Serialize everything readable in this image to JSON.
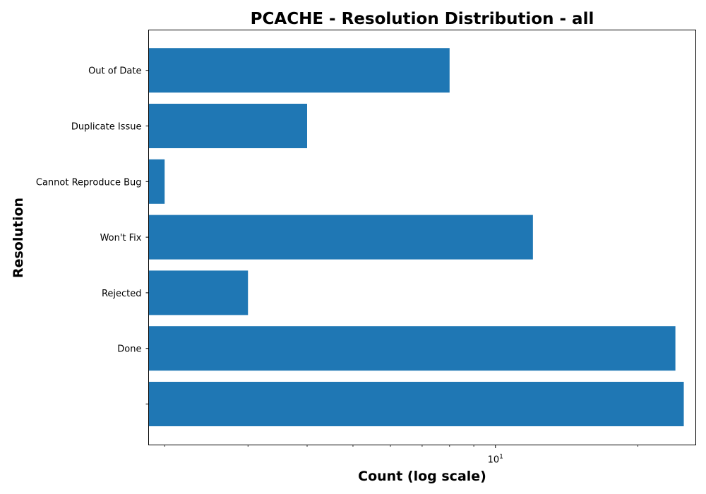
{
  "chart_data": {
    "type": "bar",
    "orientation": "horizontal",
    "title": "PCACHE - Resolution Distribution - all",
    "xlabel": "Count (log scale)",
    "ylabel": "Resolution",
    "xscale": "log",
    "xlim": [
      1.85,
      26.5
    ],
    "x_major_tick": {
      "base": "10",
      "exponent": "1",
      "value": 10
    },
    "x_minor_ticks": [
      2,
      3,
      4,
      5,
      6,
      7,
      8,
      9,
      20
    ],
    "categories": [
      "",
      "Done",
      "Rejected",
      "Won't Fix",
      "Cannot Reproduce Bug",
      "Duplicate Issue",
      "Out of Date"
    ],
    "values": [
      25,
      24,
      3,
      12,
      2,
      4,
      8
    ],
    "color": "#1f77b4",
    "grid": false,
    "legend": "none"
  }
}
